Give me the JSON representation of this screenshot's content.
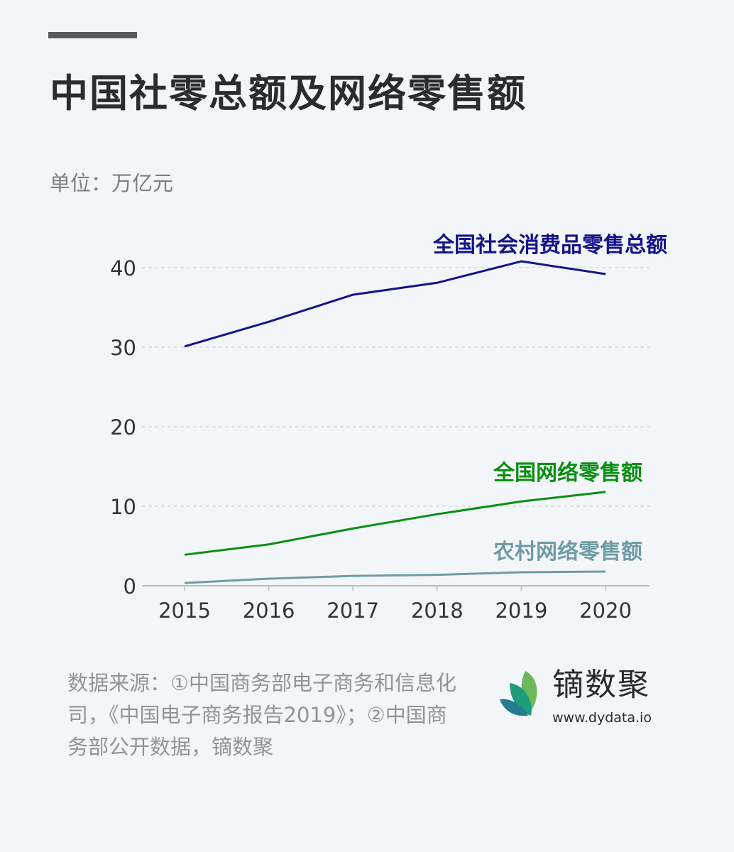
{
  "title": "中国社零总额及网络零售额",
  "unit_label": "单位：万亿元",
  "source": "数据来源：①中国商务部电子商务和信息化司，《中国电子商务报告2019》；②中国商务部公开数据，镝数聚",
  "logo": {
    "name": "镝数聚",
    "url": "www.dydata.io"
  },
  "chart_data": {
    "type": "line",
    "title": "中国社零总额及网络零售额",
    "ylabel": "单位：万亿元",
    "x": [
      "2015",
      "2016",
      "2017",
      "2018",
      "2019",
      "2020"
    ],
    "ylim": [
      0,
      42
    ],
    "yticks": [
      0,
      10,
      20,
      30,
      40
    ],
    "grid": "horizontal dashed",
    "series": [
      {
        "name": "全国社会消费品零售总额",
        "color": "#14148a",
        "values": [
          30.1,
          33.2,
          36.6,
          38.1,
          40.8,
          39.2
        ]
      },
      {
        "name": "全国网络零售额",
        "color": "#0a8f12",
        "values": [
          3.9,
          5.2,
          7.2,
          9.0,
          10.6,
          11.8
        ]
      },
      {
        "name": "农村网络零售额",
        "color": "#6f9ba6",
        "values": [
          0.35,
          0.89,
          1.24,
          1.37,
          1.7,
          1.79
        ]
      }
    ]
  }
}
